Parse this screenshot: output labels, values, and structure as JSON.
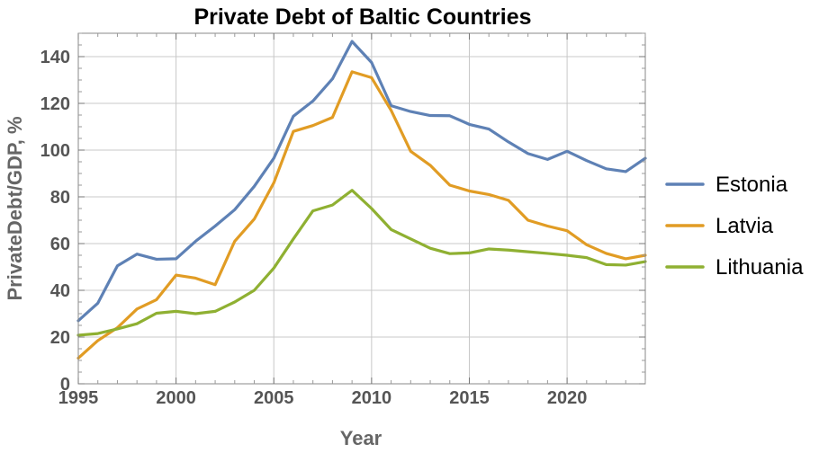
{
  "chart_data": {
    "type": "line",
    "title": "Private Debt of Baltic Countries",
    "xlabel": "Year",
    "ylabel": "PrivateDebt/GDP, %",
    "xlim": [
      1995,
      2024
    ],
    "ylim": [
      0,
      150
    ],
    "x_ticks": [
      1995,
      2000,
      2005,
      2010,
      2015,
      2020
    ],
    "y_ticks": [
      0,
      20,
      40,
      60,
      80,
      100,
      120,
      140
    ],
    "grid": true,
    "legend_position": "right",
    "x": [
      1995,
      1996,
      1997,
      1998,
      1999,
      2000,
      2001,
      2002,
      2003,
      2004,
      2005,
      2006,
      2007,
      2008,
      2009,
      2010,
      2011,
      2012,
      2013,
      2014,
      2015,
      2016,
      2017,
      2018,
      2019,
      2020,
      2021,
      2022,
      2023,
      2024
    ],
    "series": [
      {
        "name": "Estonia",
        "color": "#5e81b5",
        "values": [
          27,
          34.5,
          50.5,
          55.5,
          53.3,
          53.5,
          61,
          67.5,
          74.5,
          84.5,
          96.5,
          114.5,
          121,
          130.5,
          146.5,
          137.5,
          119,
          116.5,
          114.8,
          114.7,
          111,
          109,
          103.5,
          98.5,
          96,
          99.5,
          95.5,
          92,
          90.8,
          96.5
        ]
      },
      {
        "name": "Latvia",
        "color": "#e19c24",
        "values": [
          11,
          18.5,
          24,
          32,
          36,
          46.5,
          45.2,
          42.4,
          61,
          70.5,
          86,
          108,
          110.5,
          114,
          133.5,
          131,
          117,
          99.5,
          93.5,
          85,
          82.5,
          81,
          78.5,
          70,
          67.5,
          65.5,
          59.5,
          55.8,
          53.5,
          55
        ]
      },
      {
        "name": "Lithuania",
        "color": "#8fb032",
        "values": [
          20.8,
          21.5,
          23.5,
          25.7,
          30.2,
          31,
          30,
          31,
          35,
          40,
          49.5,
          62,
          74,
          76.5,
          82.8,
          75,
          66,
          62,
          58,
          55.7,
          56,
          57.7,
          57.2,
          56.5,
          55.8,
          55,
          54,
          51,
          50.8,
          52.3
        ]
      }
    ]
  }
}
